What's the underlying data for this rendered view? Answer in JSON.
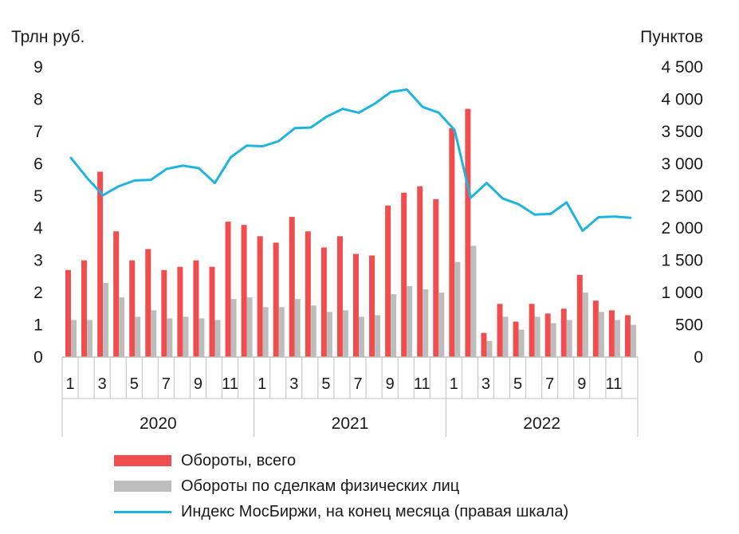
{
  "chart_data": {
    "type": "bar+line",
    "left_axis_label": "Трлн руб.",
    "right_axis_label": "Пунктов",
    "left_ylim": [
      0,
      9
    ],
    "right_ylim": [
      0,
      4500
    ],
    "left_ticks": [
      "0",
      "1",
      "2",
      "3",
      "4",
      "5",
      "6",
      "7",
      "8",
      "9"
    ],
    "right_ticks": [
      "0",
      "500",
      "1 000",
      "1 500",
      "2 000",
      "2 500",
      "3 000",
      "3 500",
      "4 000",
      "4 500"
    ],
    "x_tick_labels": [
      "1",
      "",
      "3",
      "",
      "5",
      "",
      "7",
      "",
      "9",
      "",
      "11",
      "",
      "1",
      "",
      "3",
      "",
      "5",
      "",
      "7",
      "",
      "9",
      "",
      "11",
      "",
      "1",
      "",
      "3",
      "",
      "5",
      "",
      "7",
      "",
      "9",
      "",
      "11",
      ""
    ],
    "years": [
      "2020",
      "2021",
      "2022"
    ],
    "colors": {
      "total": "#f04e4e",
      "individuals": "#bdbdbd",
      "index": "#1db5e0",
      "axis": "#bfbfbf"
    },
    "series": [
      {
        "name": "Обороты, всего",
        "axis": "left",
        "kind": "bar",
        "values": [
          2.7,
          3.0,
          5.75,
          3.9,
          3.0,
          3.35,
          2.7,
          2.8,
          3.0,
          2.8,
          4.2,
          4.1,
          3.75,
          3.55,
          4.35,
          3.9,
          3.4,
          3.75,
          3.2,
          3.15,
          4.7,
          5.1,
          5.3,
          4.9,
          7.1,
          7.7,
          0.75,
          1.65,
          1.1,
          1.65,
          1.35,
          1.5,
          2.55,
          1.75,
          1.45,
          1.3
        ]
      },
      {
        "name": "Обороты по сделкам физических лиц",
        "axis": "left",
        "kind": "bar",
        "values": [
          1.15,
          1.15,
          2.3,
          1.85,
          1.25,
          1.45,
          1.2,
          1.25,
          1.2,
          1.15,
          1.8,
          1.85,
          1.55,
          1.55,
          1.8,
          1.6,
          1.4,
          1.45,
          1.25,
          1.3,
          1.95,
          2.2,
          2.1,
          2.0,
          2.95,
          3.45,
          0.5,
          1.25,
          0.85,
          1.25,
          1.05,
          1.15,
          2.0,
          1.4,
          1.15,
          1.0
        ]
      },
      {
        "name": "Индекс МосБиржи, на конец месяца (правая шкала)",
        "axis": "right",
        "kind": "line",
        "values": [
          3090,
          2780,
          2510,
          2650,
          2740,
          2750,
          2920,
          2970,
          2930,
          2700,
          3100,
          3280,
          3270,
          3350,
          3550,
          3560,
          3730,
          3850,
          3790,
          3930,
          4110,
          4150,
          3880,
          3790,
          3520,
          2470,
          2700,
          2460,
          2370,
          2210,
          2220,
          2400,
          1960,
          2170,
          2180,
          2160
        ]
      }
    ],
    "legend": [
      "Обороты, всего",
      "Обороты по сделкам физических лиц",
      "Индекс МосБиржи, на конец месяца (правая шкала)"
    ]
  }
}
